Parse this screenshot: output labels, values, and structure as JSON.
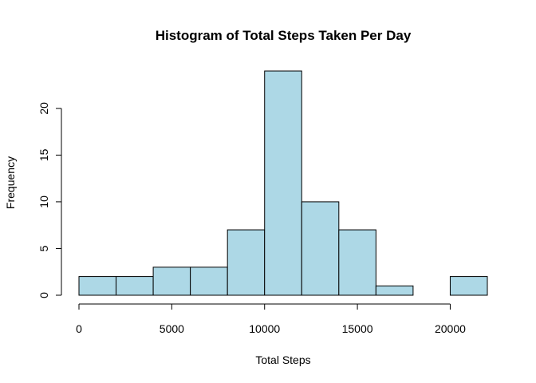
{
  "chart_data": {
    "type": "bar",
    "title": "Histogram of  Total Steps Taken Per Day",
    "xlabel": "Total Steps",
    "ylabel": "Frequency",
    "bins": [
      {
        "x0": 0,
        "x1": 2000,
        "count": 2
      },
      {
        "x0": 2000,
        "x1": 4000,
        "count": 2
      },
      {
        "x0": 4000,
        "x1": 6000,
        "count": 3
      },
      {
        "x0": 6000,
        "x1": 8000,
        "count": 3
      },
      {
        "x0": 8000,
        "x1": 10000,
        "count": 7
      },
      {
        "x0": 10000,
        "x1": 12000,
        "count": 24
      },
      {
        "x0": 12000,
        "x1": 14000,
        "count": 10
      },
      {
        "x0": 14000,
        "x1": 16000,
        "count": 7
      },
      {
        "x0": 16000,
        "x1": 18000,
        "count": 1
      },
      {
        "x0": 18000,
        "x1": 20000,
        "count": 0
      },
      {
        "x0": 20000,
        "x1": 22000,
        "count": 2
      }
    ],
    "xlim": [
      0,
      22000
    ],
    "ylim": [
      0,
      24
    ],
    "xticks": [
      0,
      5000,
      10000,
      15000,
      20000
    ],
    "yticks": [
      0,
      5,
      10,
      15,
      20
    ],
    "bar_color": "#add8e6",
    "grid": false,
    "legend": "none"
  }
}
